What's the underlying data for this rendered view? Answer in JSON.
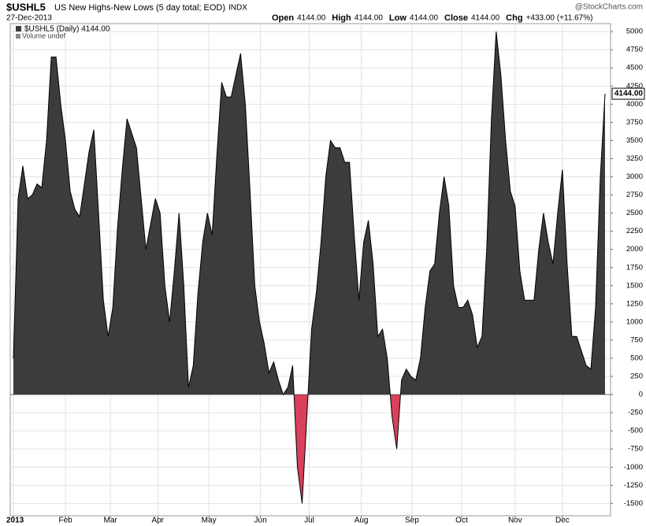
{
  "chart_data": {
    "type": "area",
    "symbol": "$USHL5",
    "title": "US New Highs-New Lows (5 day total; EOD)",
    "exchange": "INDX",
    "date": "27-Dec-2013",
    "source": "@StockCharts.com",
    "quote": [
      {
        "label": "Open",
        "value": "4144.00"
      },
      {
        "label": "High",
        "value": "4144.00"
      },
      {
        "label": "Low",
        "value": "4144.00"
      },
      {
        "label": "Close",
        "value": "4144.00"
      },
      {
        "label": "Chg",
        "value": "+433.00 (+11.67%)"
      }
    ],
    "legend": [
      "$USHL5 (Daily) 4144.00",
      "Volume undef"
    ],
    "last_label": "4144.00",
    "color": "#3c3c3c",
    "negative_color": "#d9405a",
    "grid": true,
    "values": [
      500,
      2700,
      3150,
      2700,
      2750,
      2900,
      2850,
      3500,
      4650,
      4650,
      4000,
      3500,
      2800,
      2550,
      2450,
      2900,
      3350,
      3650,
      2500,
      1300,
      800,
      1200,
      2300,
      3100,
      3800,
      3600,
      3400,
      2700,
      2000,
      2350,
      2700,
      2500,
      1500,
      1000,
      1700,
      2500,
      1500,
      100,
      400,
      1400,
      2100,
      2500,
      2200,
      3300,
      4300,
      4100,
      4100,
      4400,
      4700,
      4000,
      2800,
      1500,
      1000,
      700,
      300,
      450,
      200,
      0,
      100,
      400,
      -1000,
      -1500,
      -300,
      900,
      1400,
      2100,
      3000,
      3500,
      3400,
      3400,
      3200,
      3200,
      2200,
      1300,
      2100,
      2400,
      1800,
      800,
      900,
      500,
      -300,
      -750,
      200,
      350,
      250,
      200,
      500,
      1200,
      1700,
      1800,
      2500,
      3000,
      2600,
      1500,
      1200,
      1200,
      1300,
      1100,
      650,
      800,
      2000,
      3800,
      5000,
      4400,
      3500,
      2800,
      2600,
      1700,
      1300,
      1300,
      1300,
      2000,
      2500,
      2100,
      1800,
      2500,
      3100,
      1800,
      800,
      800,
      600,
      400,
      350,
      1200,
      3000,
      4144
    ],
    "xlim": [
      0,
      125
    ],
    "xticks": [
      {
        "value": 0,
        "label": "2013"
      },
      {
        "value": 11,
        "label": "Feb"
      },
      {
        "value": 20.5,
        "label": "Mar"
      },
      {
        "value": 30.5,
        "label": "Apr"
      },
      {
        "value": 41.3,
        "label": "May"
      },
      {
        "value": 52.2,
        "label": "Jun"
      },
      {
        "value": 62.5,
        "label": "Jul"
      },
      {
        "value": 73.5,
        "label": "Aug"
      },
      {
        "value": 84.2,
        "label": "Sep"
      },
      {
        "value": 94.7,
        "label": "Oct"
      },
      {
        "value": 106,
        "label": "Nov"
      },
      {
        "value": 116,
        "label": "Dec"
      }
    ],
    "ylim": [
      -1670,
      5110
    ],
    "yticks": [
      -1500,
      -1250,
      -1000,
      -750,
      -500,
      -250,
      0,
      250,
      500,
      750,
      1000,
      1250,
      1500,
      1750,
      2000,
      2250,
      2500,
      2750,
      3000,
      3250,
      3500,
      3750,
      4000,
      4250,
      4500,
      4750,
      5000
    ]
  }
}
